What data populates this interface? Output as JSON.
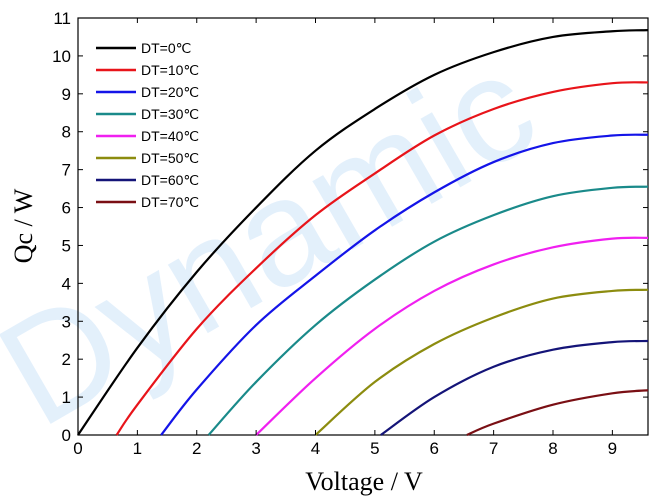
{
  "chart_data": {
    "type": "line",
    "title": "",
    "xlabel": "Voltage / V",
    "ylabel": "Qc / W",
    "xlim": [
      0,
      9.6
    ],
    "ylim": [
      0,
      11
    ],
    "x_ticks": [
      0,
      1,
      2,
      3,
      4,
      5,
      6,
      7,
      8,
      9
    ],
    "y_ticks": [
      0,
      1,
      2,
      3,
      4,
      5,
      6,
      7,
      8,
      9,
      10,
      11
    ],
    "grid": false,
    "legend_position": "top-left",
    "series": [
      {
        "name": "DT=0℃",
        "color": "#000000",
        "x": [
          0,
          1,
          2,
          3,
          4,
          5,
          6,
          7,
          8,
          9,
          9.6
        ],
        "values": [
          0,
          2.3,
          4.3,
          6.0,
          7.5,
          8.6,
          9.5,
          10.1,
          10.5,
          10.65,
          10.68
        ]
      },
      {
        "name": "DT=10℃",
        "color": "#e8141a",
        "x": [
          0.65,
          1,
          2,
          3,
          4,
          5,
          6,
          7,
          8,
          9,
          9.6
        ],
        "values": [
          0,
          0.8,
          2.8,
          4.4,
          5.8,
          6.9,
          7.9,
          8.6,
          9.05,
          9.28,
          9.3
        ]
      },
      {
        "name": "DT=20℃",
        "color": "#1414e8",
        "x": [
          1.4,
          2,
          3,
          4,
          5,
          6,
          7,
          8,
          9,
          9.6
        ],
        "values": [
          0,
          1.2,
          2.9,
          4.2,
          5.4,
          6.4,
          7.2,
          7.7,
          7.9,
          7.92
        ]
      },
      {
        "name": "DT=30℃",
        "color": "#1a8a8a",
        "x": [
          2.2,
          3,
          4,
          5,
          6,
          7,
          8,
          9,
          9.6
        ],
        "values": [
          0,
          1.4,
          2.9,
          4.1,
          5.1,
          5.8,
          6.3,
          6.52,
          6.55
        ]
      },
      {
        "name": "DT=40℃",
        "color": "#f020f0",
        "x": [
          3.0,
          4,
          5,
          6,
          7,
          8,
          9,
          9.6
        ],
        "values": [
          0,
          1.5,
          2.8,
          3.8,
          4.5,
          4.95,
          5.18,
          5.2
        ]
      },
      {
        "name": "DT=50℃",
        "color": "#8c8c0f",
        "x": [
          4.0,
          5,
          6,
          7,
          8,
          9,
          9.6
        ],
        "values": [
          0,
          1.4,
          2.4,
          3.1,
          3.6,
          3.8,
          3.83
        ]
      },
      {
        "name": "DT=60℃",
        "color": "#141478",
        "x": [
          5.1,
          6,
          7,
          8,
          9,
          9.6
        ],
        "values": [
          0,
          1.0,
          1.8,
          2.25,
          2.45,
          2.48
        ]
      },
      {
        "name": "DT=70℃",
        "color": "#7a0f14",
        "x": [
          6.55,
          7,
          8,
          9,
          9.6
        ],
        "values": [
          0,
          0.3,
          0.8,
          1.1,
          1.18
        ]
      }
    ]
  },
  "watermark": {
    "text": "Dynamic",
    "color": "#2f8fe8"
  }
}
